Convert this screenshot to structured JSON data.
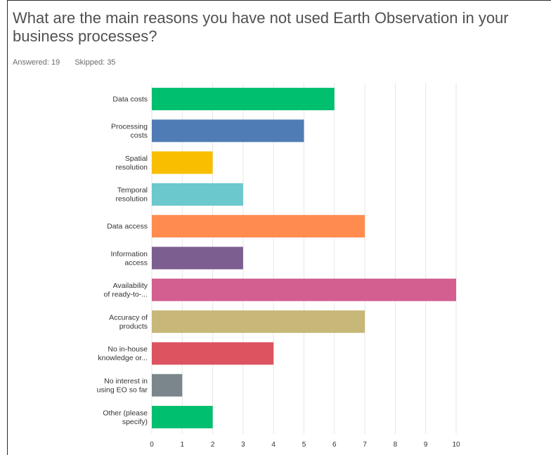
{
  "question": {
    "title": "What are the main reasons you have not used Earth Observation in your business processes?"
  },
  "stats": {
    "answered": "Answered: 19",
    "skipped": "Skipped: 35"
  },
  "chart_data": {
    "type": "bar",
    "orientation": "horizontal",
    "categories": [
      [
        "Data costs"
      ],
      [
        "Processing",
        "costs"
      ],
      [
        "Spatial",
        "resolution"
      ],
      [
        "Temporal",
        "resolution"
      ],
      [
        "Data access"
      ],
      [
        "Information",
        "access"
      ],
      [
        "Availability",
        "of ready-to-..."
      ],
      [
        "Accuracy of",
        "products"
      ],
      [
        "No in-house",
        "knowledge or..."
      ],
      [
        "No interest in",
        "using EO so far"
      ],
      [
        "Other (please",
        "specify)"
      ]
    ],
    "values": [
      6,
      5,
      2,
      3,
      7,
      3,
      10,
      7,
      4,
      1,
      2
    ],
    "colors": [
      "#00bf6f",
      "#507cb6",
      "#f9be00",
      "#6bc8cd",
      "#ff8b4f",
      "#7d5e90",
      "#d25f90",
      "#c7b879",
      "#dd5360",
      "#7b868c",
      "#00bf6f"
    ],
    "xlim": [
      0,
      10
    ],
    "xticks": [
      "0",
      "1",
      "2",
      "3",
      "4",
      "5",
      "6",
      "7",
      "8",
      "9",
      "10"
    ],
    "grid": true,
    "gridColor": "#e6e6e6"
  }
}
